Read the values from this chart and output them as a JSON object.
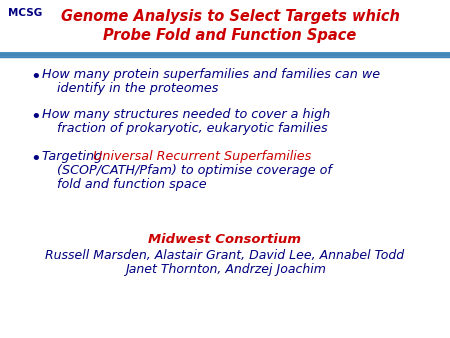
{
  "bg_color": "#ffffff",
  "header_bg": "#e8f4fb",
  "header_line_color": "#4488bb",
  "title_line1": "Genome Analysis to Select Targets which",
  "title_line2": "Probe Fold and Function Space",
  "title_color": "#cc0000",
  "bullet_color": "#000080",
  "red_text_color": "#cc0000",
  "bullet1_line1": "How many protein superfamilies and families can we",
  "bullet1_line2": "identify in the proteomes",
  "bullet2_line1": "How many structures needed to cover a high",
  "bullet2_line2": "fraction of prokaryotic, eukaryotic families",
  "bullet3_prefix": "Targeting ",
  "bullet3_red": "Universal Recurrent Superfamilies",
  "bullet3_line2": "(SCOP/CATH/Pfam) to optimise coverage of",
  "bullet3_line3": "fold and function space",
  "footer_title": "Midwest Consortium",
  "footer_line1": "Russell Marsden, Alastair Grant, David Lee, Annabel Todd",
  "footer_line2": "Janet Thornton, Andrzej Joachim",
  "footer_color": "#cc0000",
  "footer_names_color": "#000080",
  "mcsg_color": "#000080",
  "figsize": [
    4.5,
    3.38
  ],
  "dpi": 100
}
